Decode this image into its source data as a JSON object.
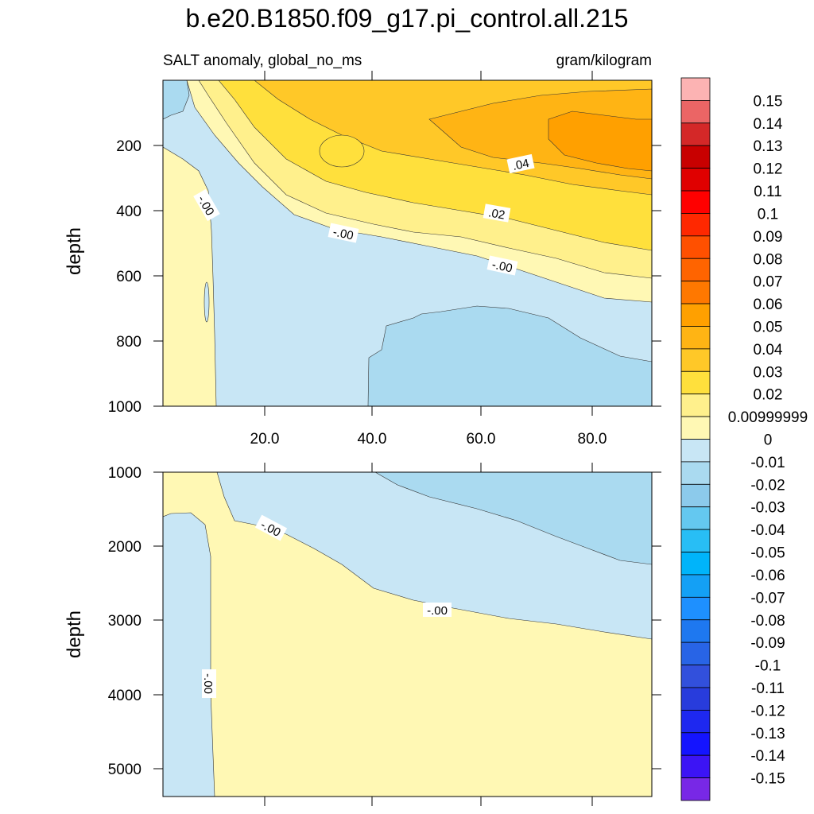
{
  "chart_data": {
    "type": "contour",
    "title": "b.e20.B1850.f09_g17.pi_control.all.215",
    "left_subtitle": "SALT anomaly, global_no_ms",
    "right_subtitle": "gram/kilogram",
    "panels": [
      {
        "id": "upper",
        "ylabel": "depth",
        "xlim": [
          2,
          90
        ],
        "ylim": [
          0,
          1000
        ],
        "y_reversed": true,
        "yticks": [
          "200",
          "400",
          "600",
          "800",
          "1000"
        ],
        "xticks": [
          "20.0",
          "40.0",
          "60.0",
          "80.0"
        ],
        "contour_labels": [
          ".04",
          ".02",
          "-.00",
          "-.00",
          "-.00"
        ]
      },
      {
        "id": "lower",
        "ylabel": "depth",
        "xlim": [
          2,
          90
        ],
        "ylim": [
          1000,
          5400
        ],
        "y_reversed": true,
        "yticks": [
          "1000",
          "2000",
          "3000",
          "4000",
          "5000"
        ],
        "contour_labels": [
          "-.00",
          "-.00",
          "-.00"
        ]
      }
    ],
    "colorbar": {
      "labels": [
        "0.15",
        "0.14",
        "0.13",
        "0.12",
        "0.11",
        "0.1",
        "0.09",
        "0.08",
        "0.07",
        "0.06",
        "0.05",
        "0.04",
        "0.03",
        "0.02",
        "0.00999999",
        "0",
        "-0.01",
        "-0.02",
        "-0.03",
        "-0.04",
        "-0.05",
        "-0.06",
        "-0.07",
        "-0.08",
        "-0.09",
        "-0.1",
        "-0.11",
        "-0.12",
        "-0.13",
        "-0.14",
        "-0.15"
      ],
      "colors": [
        "#FCB3B3",
        "#EB6565",
        "#D42828",
        "#C80000",
        "#E00000",
        "#FF0000",
        "#FF2800",
        "#FF5000",
        "#FF6400",
        "#FF7800",
        "#FFA000",
        "#FFB414",
        "#FFC828",
        "#FFE03C",
        "#FFF08C",
        "#FFF8B4",
        "#C8E6F5",
        "#AADAF0",
        "#8CCAEB",
        "#64C8F0",
        "#28BEF5",
        "#00B4FA",
        "#14A0F5",
        "#1E90FF",
        "#1E78F0",
        "#2864E6",
        "#3250DC",
        "#283CDC",
        "#1E28F0",
        "#1414FF",
        "#3C14F5",
        "#7828E6"
      ]
    }
  }
}
